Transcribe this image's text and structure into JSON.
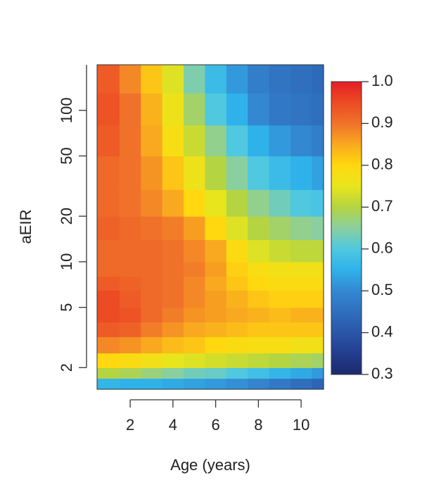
{
  "chart_data": {
    "type": "heatmap",
    "xlabel": "Age (years)",
    "ylabel": "aEIR",
    "x_bins": [
      0.45,
      1.5,
      2.5,
      3.5,
      4.5,
      5.5,
      6.5,
      7.5,
      8.5,
      9.5,
      10.5,
      11.05
    ],
    "y_bins": [
      1.44,
      1.7,
      2,
      2.5,
      3.2,
      4,
      5,
      6.5,
      8,
      10,
      14,
      20,
      30,
      50,
      80,
      130,
      200
    ],
    "z": [
      [
        0.56,
        0.55,
        0.55,
        0.54,
        0.53,
        0.52,
        0.51,
        0.49,
        0.47,
        0.45,
        0.43
      ],
      [
        0.7,
        0.69,
        0.67,
        0.65,
        0.63,
        0.62,
        0.6,
        0.58,
        0.56,
        0.54,
        0.52
      ],
      [
        0.8,
        0.79,
        0.77,
        0.75,
        0.74,
        0.73,
        0.72,
        0.71,
        0.7,
        0.69,
        0.68
      ],
      [
        0.88,
        0.87,
        0.85,
        0.83,
        0.82,
        0.8,
        0.79,
        0.78,
        0.78,
        0.77,
        0.77
      ],
      [
        0.93,
        0.92,
        0.89,
        0.87,
        0.85,
        0.84,
        0.83,
        0.82,
        0.82,
        0.82,
        0.82
      ],
      [
        0.95,
        0.94,
        0.91,
        0.89,
        0.87,
        0.86,
        0.85,
        0.84,
        0.83,
        0.84,
        0.84
      ],
      [
        0.95,
        0.93,
        0.91,
        0.9,
        0.88,
        0.86,
        0.84,
        0.82,
        0.81,
        0.81,
        0.81
      ],
      [
        0.93,
        0.92,
        0.91,
        0.9,
        0.88,
        0.85,
        0.82,
        0.8,
        0.79,
        0.79,
        0.79
      ],
      [
        0.91,
        0.91,
        0.91,
        0.9,
        0.89,
        0.86,
        0.81,
        0.78,
        0.77,
        0.77,
        0.77
      ],
      [
        0.91,
        0.91,
        0.91,
        0.9,
        0.88,
        0.85,
        0.79,
        0.74,
        0.72,
        0.71,
        0.71
      ],
      [
        0.92,
        0.91,
        0.9,
        0.89,
        0.86,
        0.8,
        0.74,
        0.7,
        0.68,
        0.66,
        0.65
      ],
      [
        0.91,
        0.9,
        0.88,
        0.85,
        0.8,
        0.75,
        0.7,
        0.66,
        0.63,
        0.6,
        0.59
      ],
      [
        0.91,
        0.9,
        0.87,
        0.82,
        0.76,
        0.7,
        0.65,
        0.6,
        0.57,
        0.55,
        0.53
      ],
      [
        0.93,
        0.9,
        0.85,
        0.78,
        0.72,
        0.66,
        0.6,
        0.55,
        0.52,
        0.5,
        0.48
      ],
      [
        0.94,
        0.9,
        0.84,
        0.76,
        0.68,
        0.6,
        0.55,
        0.5,
        0.47,
        0.46,
        0.45
      ],
      [
        0.93,
        0.88,
        0.82,
        0.74,
        0.64,
        0.57,
        0.52,
        0.48,
        0.46,
        0.45,
        0.44
      ]
    ],
    "xlim": [
      0.45,
      11.05
    ],
    "xticks": [
      2,
      4,
      6,
      8,
      10
    ],
    "ylim": [
      1.44,
      200
    ],
    "yticks": [
      2,
      5,
      10,
      20,
      50,
      100
    ],
    "ylog": true,
    "colorbar": {
      "lim": [
        0.3,
        1
      ],
      "ticks": [
        0.3,
        0.4,
        0.5,
        0.6,
        0.7,
        0.8,
        0.9,
        {
          "value": 1,
          "label": "1.0"
        }
      ]
    },
    "colorscale": {
      "values": [
        0.3,
        0.35,
        0.4,
        0.45,
        0.5,
        0.55,
        0.6,
        0.65,
        0.7,
        0.75,
        0.8,
        0.85,
        0.9,
        0.95,
        1
      ],
      "colors": [
        "#1b2a6b",
        "#243d8f",
        "#2b56a8",
        "#2f6fbe",
        "#3488d2",
        "#2fb2ea",
        "#4fc8e0",
        "#8acfa0",
        "#b4d442",
        "#e8e51c",
        "#ffd80f",
        "#f9a91f",
        "#f0722a",
        "#ec4b24",
        "#e41e26"
      ]
    }
  }
}
